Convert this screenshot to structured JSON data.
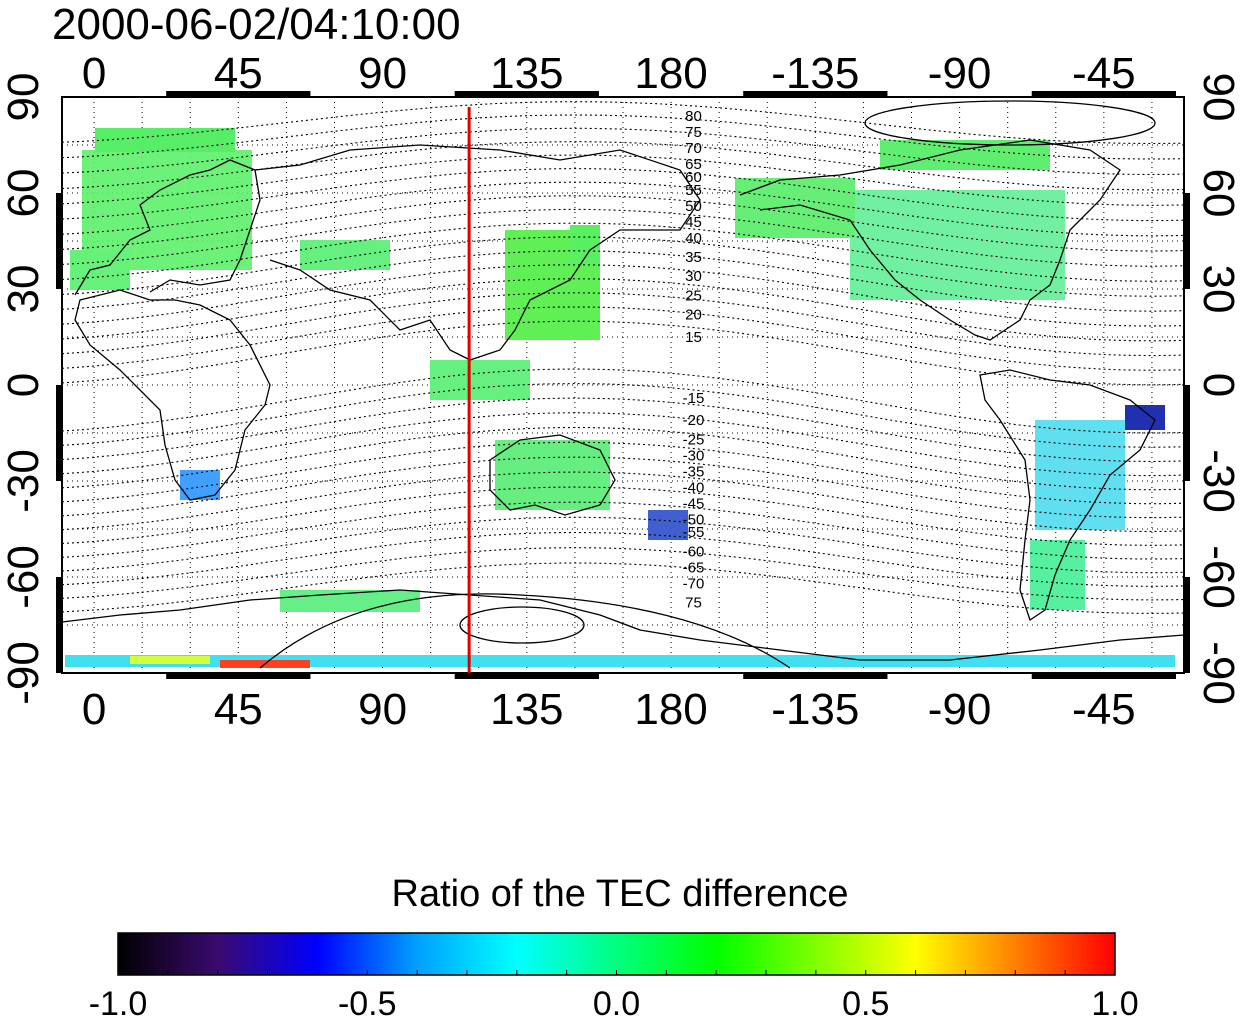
{
  "title": "2000-06-02/04:10:00",
  "map": {
    "top_lon_labels": [
      "0",
      "45",
      "90",
      "135",
      "180",
      "-135",
      "-90",
      "-45"
    ],
    "bottom_lon_labels": [
      "0",
      "45",
      "90",
      "135",
      "180",
      "-135",
      "-90",
      "-45"
    ],
    "left_lat_labels": [
      "90",
      "60",
      "30",
      "0",
      "-30",
      "-60",
      "-90"
    ],
    "right_lat_labels": [
      "90",
      "60",
      "30",
      "0",
      "-30",
      "-60",
      "-90"
    ],
    "lon_ticks": [
      0,
      45,
      90,
      135,
      180,
      225,
      270,
      315
    ],
    "lat_ticks": [
      90,
      60,
      30,
      0,
      -30,
      -60,
      -90
    ],
    "lon_range": [
      -10,
      340
    ],
    "lat_range": [
      -90,
      90
    ],
    "meridian_marker_lon": 117,
    "meridian_marker_color": "#dd0000",
    "contour_labels_north": [
      {
        "text": "80",
        "lat": 84
      },
      {
        "text": "75",
        "lat": 79
      },
      {
        "text": "70",
        "lat": 74
      },
      {
        "text": "65",
        "lat": 69
      },
      {
        "text": "60",
        "lat": 65
      },
      {
        "text": "55",
        "lat": 61
      },
      {
        "text": "50",
        "lat": 56
      },
      {
        "text": "45",
        "lat": 51
      },
      {
        "text": "40",
        "lat": 46
      },
      {
        "text": "35",
        "lat": 40
      },
      {
        "text": "30",
        "lat": 34
      },
      {
        "text": "25",
        "lat": 28
      },
      {
        "text": "20",
        "lat": 22
      },
      {
        "text": "15",
        "lat": 15
      }
    ],
    "contour_labels_south": [
      {
        "text": "-15",
        "lat": -4
      },
      {
        "text": "-20",
        "lat": -11
      },
      {
        "text": "-25",
        "lat": -17
      },
      {
        "text": "-30",
        "lat": -22
      },
      {
        "text": "-35",
        "lat": -27
      },
      {
        "text": "-40",
        "lat": -32
      },
      {
        "text": "-45",
        "lat": -37
      },
      {
        "text": "-50",
        "lat": -42
      },
      {
        "text": "-55",
        "lat": -46
      },
      {
        "text": "-60",
        "lat": -52
      },
      {
        "text": "-65",
        "lat": -57
      },
      {
        "text": "-70",
        "lat": -62
      },
      {
        "text": "75",
        "lat": -68
      }
    ],
    "contour_label_lon": 187
  },
  "colorbar": {
    "title": "Ratio of the TEC difference",
    "range": [
      -1.0,
      1.0
    ],
    "tick_values": [
      -1.0,
      -0.5,
      0.0,
      0.5,
      1.0
    ],
    "tick_labels": [
      "-1.0",
      "-0.5",
      "0.0",
      "0.5",
      "1.0"
    ],
    "colors": [
      "#000000",
      "#3a0a6e",
      "#0000ff",
      "#00a0ff",
      "#00ffff",
      "#00ff80",
      "#00ff00",
      "#80ff00",
      "#ffff00",
      "#ff8000",
      "#ff0000"
    ]
  }
}
